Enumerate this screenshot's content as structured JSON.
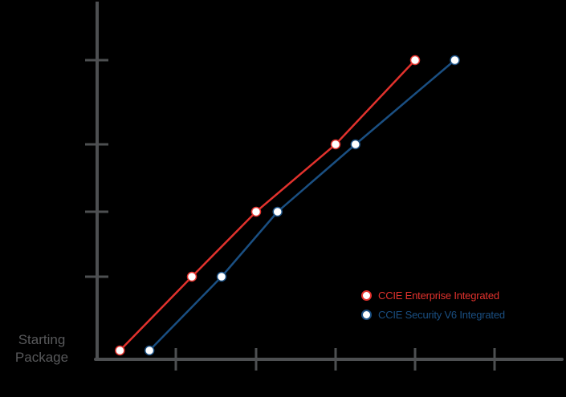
{
  "chart_data": {
    "type": "line",
    "title": "",
    "xlabel": "",
    "ylabel": "",
    "y_baseline_label": "Starting Package",
    "axis_color": "#4d4f51",
    "background": "#000000",
    "grid": false,
    "x_ticks": 5,
    "y_ticks": 4,
    "tick_labels_shown": false,
    "legend_position": "lower right",
    "series": [
      {
        "name": "CCIE Enterprise Integrated",
        "color": "#e2322d",
        "points": [
          [
            0.3,
            0
          ],
          [
            1.2,
            1
          ],
          [
            2.0,
            2
          ],
          [
            3.0,
            3
          ],
          [
            4.0,
            4
          ]
        ]
      },
      {
        "name": "CCIE Security V6 Integrated",
        "color": "#1a4f82",
        "points": [
          [
            0.67,
            0
          ],
          [
            1.57,
            1
          ],
          [
            2.27,
            2
          ],
          [
            3.25,
            3
          ],
          [
            4.5,
            4
          ]
        ]
      }
    ]
  },
  "labels": {
    "start": "Starting Package",
    "legend": [
      "CCIE Enterprise Integrated",
      "CCIE Security V6 Integrated"
    ]
  }
}
